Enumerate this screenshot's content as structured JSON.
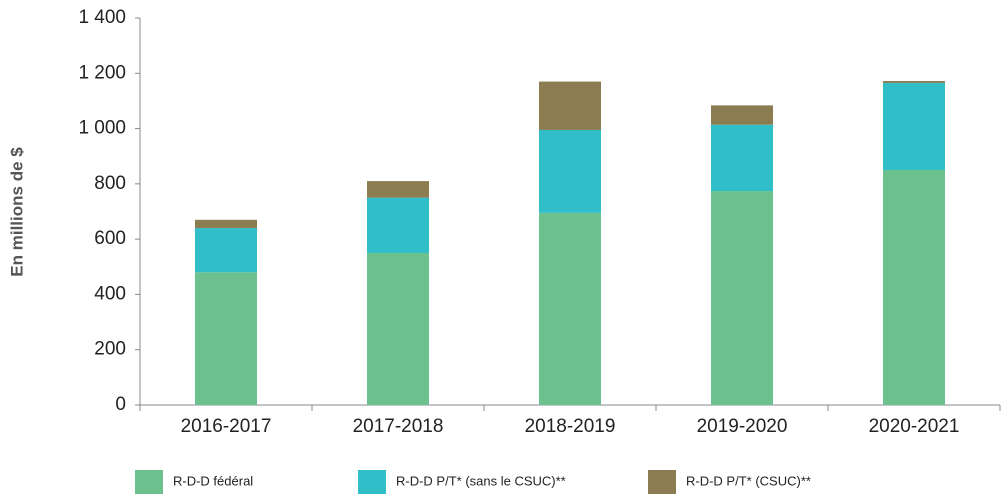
{
  "chart_data": {
    "type": "stacked-bar",
    "y_label": "En millions de $",
    "categories": [
      "2016-2017",
      "2017-2018",
      "2018-2019",
      "2019-2020",
      "2020-2021"
    ],
    "series": [
      {
        "name": "R-D-D fédéral",
        "color": "#6cc18e",
        "values": [
          480,
          550,
          695,
          774,
          850
        ]
      },
      {
        "name": "R-D-D P/T* (sans le CSUC)**",
        "color": "#30bfc9",
        "values": [
          160,
          200,
          300,
          240,
          315
        ]
      },
      {
        "name": "R-D-D P/T* (CSUC)**",
        "color": "#8b7d51",
        "values": [
          30,
          60,
          175,
          70,
          7
        ]
      }
    ],
    "ylim": [
      0,
      1400
    ],
    "yticks": [
      0,
      200,
      400,
      600,
      800,
      {
        "value": 1000,
        "label": "1 000"
      },
      {
        "value": 1200,
        "label": "1 200"
      },
      {
        "value": 1400,
        "label": "1 400"
      }
    ],
    "grid": false
  }
}
